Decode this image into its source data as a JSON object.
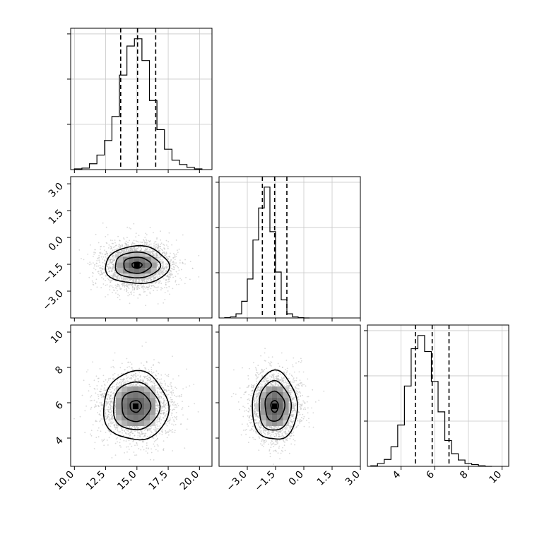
{
  "chart_data": [
    {
      "type": "histogram",
      "panel": "marginal-param-1",
      "xlim": [
        9.7,
        21.0
      ],
      "x_ticks": [
        "10.0",
        "12.5",
        "15.0",
        "17.5",
        "20.0"
      ],
      "bins": [
        10.0,
        10.6,
        11.2,
        11.8,
        12.4,
        13.0,
        13.6,
        14.2,
        14.8,
        15.4,
        16.0,
        16.6,
        17.2,
        17.8,
        18.4,
        19.0,
        19.6,
        20.2
      ],
      "counts": [
        1,
        2,
        8,
        20,
        40,
        73,
        130,
        170,
        180,
        150,
        95,
        55,
        28,
        13,
        7,
        3,
        1
      ],
      "quantile_lines": [
        13.7,
        15.05,
        16.5
      ],
      "grid": true
    },
    {
      "type": "histogram",
      "panel": "marginal-param-2",
      "xlim": [
        -4.5,
        3.0
      ],
      "x_ticks": [
        "-3.0",
        "-1.5",
        "0.0",
        "1.5",
        "3.0"
      ],
      "bins": [
        -4.2,
        -3.9,
        -3.6,
        -3.3,
        -3.0,
        -2.7,
        -2.4,
        -2.1,
        -1.8,
        -1.5,
        -1.2,
        -0.9,
        -0.6,
        -0.3,
        0.0,
        0.3
      ],
      "counts": [
        1,
        4,
        15,
        60,
        140,
        280,
        395,
        470,
        310,
        165,
        65,
        15,
        4,
        1,
        0
      ],
      "quantile_lines": [
        -2.2,
        -1.55,
        -0.9
      ],
      "grid": true
    },
    {
      "type": "histogram",
      "panel": "marginal-param-3",
      "xlim": [
        2.0,
        10.4
      ],
      "x_ticks": [
        "4",
        "6",
        "8",
        "10"
      ],
      "bins": [
        2.2,
        2.6,
        3.0,
        3.4,
        3.8,
        4.2,
        4.6,
        5.0,
        5.4,
        5.8,
        6.2,
        6.6,
        7.0,
        7.4,
        7.8,
        8.2,
        8.6,
        9.0,
        9.4
      ],
      "counts": [
        1,
        5,
        12,
        34,
        72,
        140,
        205,
        228,
        200,
        148,
        95,
        45,
        22,
        11,
        5,
        3,
        1,
        0
      ],
      "quantile_lines": [
        4.85,
        5.85,
        6.85
      ],
      "grid": true
    },
    {
      "type": "scatter",
      "panel": "joint-param-1-vs-param-2",
      "xlim": [
        9.7,
        21.0
      ],
      "ylim": [
        -4.5,
        3.4
      ],
      "x_center": 15.0,
      "x_std": 1.45,
      "y_center": -1.55,
      "y_std": 0.66,
      "y_ticks": [
        "-3.0",
        "-1.5",
        "0.0",
        "1.5",
        "3.0"
      ],
      "contours": [
        {
          "rx": 2.55,
          "ry": 1.05
        },
        {
          "rx": 1.8,
          "ry": 0.72
        },
        {
          "rx": 1.1,
          "ry": 0.45
        },
        {
          "rx": 0.4,
          "ry": 0.17
        }
      ]
    },
    {
      "type": "scatter",
      "panel": "joint-param-1-vs-param-3",
      "xlim": [
        9.7,
        21.0
      ],
      "ylim": [
        2.4,
        10.4
      ],
      "x_center": 14.9,
      "x_std": 1.45,
      "y_center": 5.8,
      "y_std": 0.95,
      "y_ticks": [
        "4",
        "6",
        "8",
        "10"
      ],
      "contours": [
        {
          "rx": 2.6,
          "ry": 1.95
        },
        {
          "rx": 1.85,
          "ry": 1.35
        },
        {
          "rx": 1.15,
          "ry": 0.85
        },
        {
          "rx": 0.45,
          "ry": 0.33
        }
      ]
    },
    {
      "type": "scatter",
      "panel": "joint-param-2-vs-param-3",
      "xlim": [
        -4.5,
        3.0
      ],
      "ylim": [
        2.4,
        10.4
      ],
      "x_center": -1.55,
      "x_std": 0.65,
      "y_center": 5.8,
      "y_std": 0.95,
      "contours": [
        {
          "rx": 1.2,
          "ry": 1.95
        },
        {
          "rx": 0.85,
          "ry": 1.4
        },
        {
          "rx": 0.52,
          "ry": 0.85
        },
        {
          "rx": 0.2,
          "ry": 0.33
        }
      ]
    }
  ]
}
